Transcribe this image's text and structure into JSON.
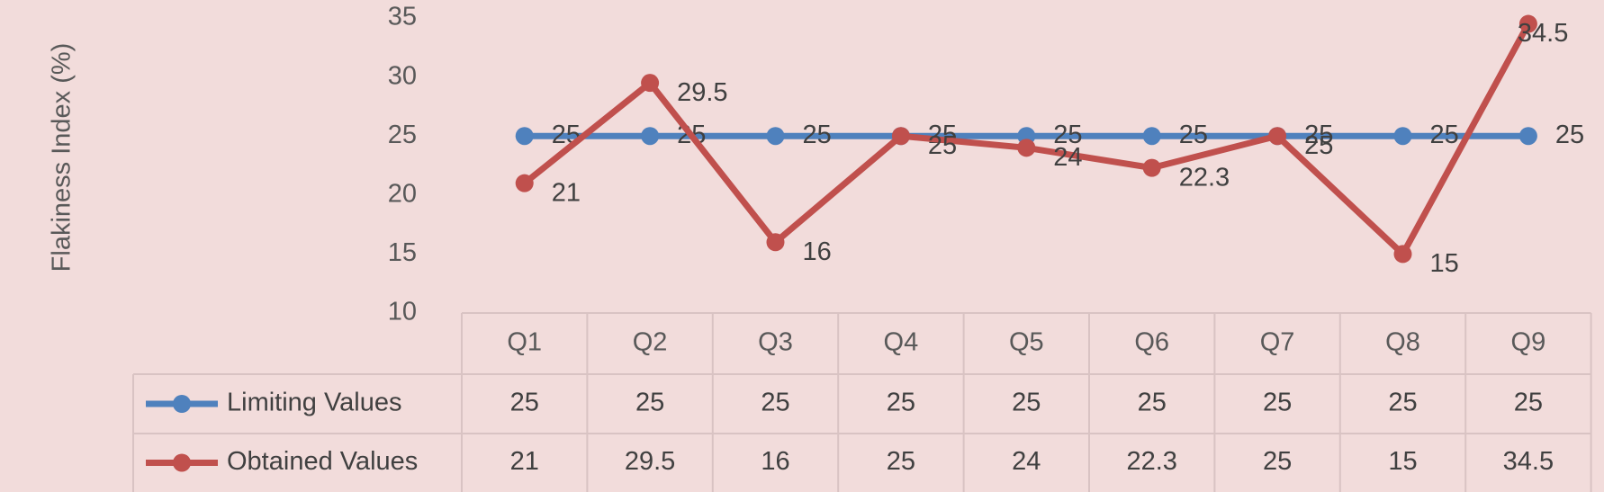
{
  "chart_data": {
    "type": "line",
    "y_label": "Flakiness Index (%)",
    "categories": [
      "Q1",
      "Q2",
      "Q3",
      "Q4",
      "Q5",
      "Q6",
      "Q7",
      "Q8",
      "Q9"
    ],
    "series": [
      {
        "name": "Limiting Values",
        "color": "#4f81bd",
        "values": [
          25,
          25,
          25,
          25,
          25,
          25,
          25,
          25,
          25
        ]
      },
      {
        "name": "Obtained Values",
        "color": "#c0504d",
        "values": [
          21,
          29.5,
          16,
          25,
          24,
          22.3,
          25,
          15,
          34.5
        ]
      }
    ],
    "ylim": [
      10,
      35
    ],
    "yticks": [
      10,
      15,
      20,
      25,
      30,
      35
    ],
    "grid": false,
    "data_table": true
  }
}
